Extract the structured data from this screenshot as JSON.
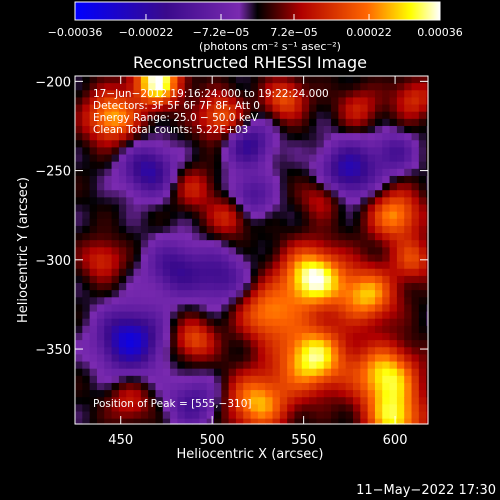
{
  "chart_data": {
    "type": "heatmap",
    "title": "Reconstructed RHESSI Image",
    "xlabel": "Heliocentric X (arcsec)",
    "ylabel": "Heliocentric Y (arcsec)",
    "xlim": [
      425,
      618
    ],
    "ylim": [
      -392,
      -197
    ],
    "x_ticks": [
      450,
      500,
      550,
      600
    ],
    "y_ticks": [
      -200,
      -250,
      -300,
      -350
    ],
    "x_tick_labels": [
      "450",
      "500",
      "550",
      "600"
    ],
    "y_tick_labels": [
      "−200",
      "−250",
      "−300",
      "−350"
    ],
    "colorbar": {
      "range": [
        -0.00036,
        0.00036
      ],
      "ticks": [
        -0.00036,
        -0.00022,
        -7.2e-05,
        7.2e-05,
        0.00022,
        0.00036
      ],
      "tick_labels": [
        "−0.00036",
        "−0.00022",
        "−7.2e−05",
        "7.2e−05",
        "0.00022",
        "0.00036"
      ],
      "unit_label": "(photons cm⁻² s⁻¹ asec⁻²)",
      "colormap": [
        "#0000ff",
        "#3a0a8c",
        "#7a2ab0",
        "#000000",
        "#c00000",
        "#ff6600",
        "#ffff00",
        "#ffffff"
      ]
    },
    "annotations": {
      "time_range": "17−Jun−2012 19:16:24.000 to 19:22:24.000",
      "detectors": "Detectors: 3F 5F 6F 7F 8F, Att 0",
      "energy_range": "Energy Range: 25.0 − 50.0 keV",
      "clean_counts": "Clean     Total counts: 5.22E+03",
      "peak": "Position of Peak = [555,−310]"
    },
    "peak_position": [
      555,
      -310
    ],
    "blobs": [
      {
        "x": 470,
        "y": -200,
        "amp": 0.00036,
        "s": 9
      },
      {
        "x": 445,
        "y": -220,
        "amp": 0.00026,
        "s": 10
      },
      {
        "x": 505,
        "y": -220,
        "amp": 0.0002,
        "s": 9
      },
      {
        "x": 540,
        "y": -210,
        "amp": 0.00018,
        "s": 8
      },
      {
        "x": 580,
        "y": -215,
        "amp": 0.00012,
        "s": 8
      },
      {
        "x": 610,
        "y": -210,
        "amp": 0.00014,
        "s": 8
      },
      {
        "x": 490,
        "y": -260,
        "amp": 0.00012,
        "s": 8
      },
      {
        "x": 510,
        "y": -275,
        "amp": 0.00016,
        "s": 8
      },
      {
        "x": 560,
        "y": -265,
        "amp": 0.00012,
        "s": 8
      },
      {
        "x": 600,
        "y": -275,
        "amp": 0.00024,
        "s": 10
      },
      {
        "x": 555,
        "y": -310,
        "amp": 0.00036,
        "s": 12
      },
      {
        "x": 585,
        "y": -320,
        "amp": 0.00026,
        "s": 11
      },
      {
        "x": 530,
        "y": -330,
        "amp": 0.00022,
        "s": 11
      },
      {
        "x": 555,
        "y": -355,
        "amp": 0.00033,
        "s": 13
      },
      {
        "x": 595,
        "y": -365,
        "amp": 0.0003,
        "s": 12
      },
      {
        "x": 525,
        "y": -380,
        "amp": 0.00026,
        "s": 12
      },
      {
        "x": 600,
        "y": -390,
        "amp": 0.00028,
        "s": 11
      },
      {
        "x": 490,
        "y": -345,
        "amp": 0.00018,
        "s": 8
      },
      {
        "x": 440,
        "y": -300,
        "amp": 0.00014,
        "s": 8
      },
      {
        "x": 455,
        "y": -380,
        "amp": 0.00012,
        "s": 8
      },
      {
        "x": 610,
        "y": -300,
        "amp": 0.00016,
        "s": 8
      },
      {
        "x": 465,
        "y": -250,
        "amp": -0.00022,
        "s": 10
      },
      {
        "x": 520,
        "y": -235,
        "amp": -0.0002,
        "s": 9
      },
      {
        "x": 575,
        "y": -250,
        "amp": -0.00024,
        "s": 11
      },
      {
        "x": 520,
        "y": -265,
        "amp": -0.00016,
        "s": 9
      },
      {
        "x": 455,
        "y": -345,
        "amp": -0.0003,
        "s": 12
      },
      {
        "x": 480,
        "y": -305,
        "amp": -0.00018,
        "s": 11
      },
      {
        "x": 505,
        "y": -310,
        "amp": -0.00016,
        "s": 10
      },
      {
        "x": 490,
        "y": -380,
        "amp": -0.00016,
        "s": 10
      },
      {
        "x": 600,
        "y": -240,
        "amp": -0.00014,
        "s": 8
      }
    ]
  },
  "footer": {
    "timestamp": "11−May−2022 17:30"
  }
}
